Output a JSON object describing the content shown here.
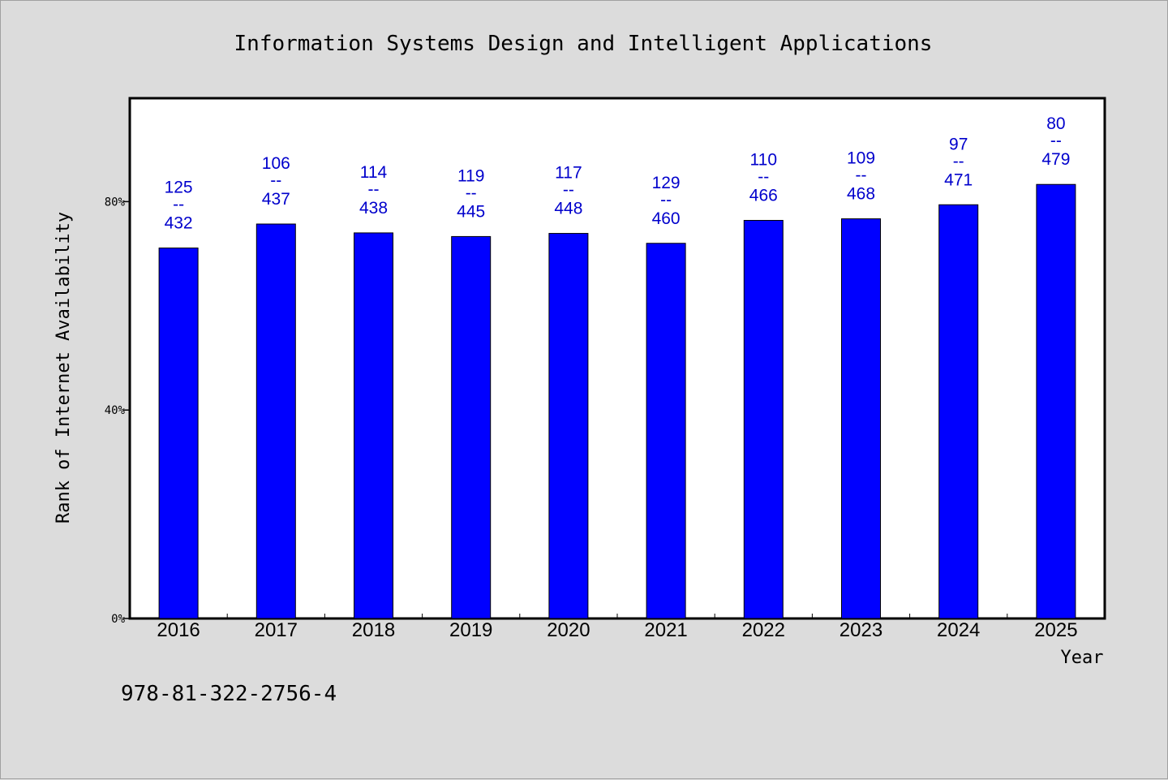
{
  "chart_data": {
    "type": "bar",
    "title": "Information Systems Design and Intelligent Applications",
    "xlabel": "Year",
    "ylabel": "Rank of Internet Availability",
    "ylim": [
      0,
      100
    ],
    "yticks": [
      0,
      40,
      80
    ],
    "ytick_labels": [
      "0%",
      "40%",
      "80%"
    ],
    "categories": [
      "2016",
      "2017",
      "2018",
      "2019",
      "2020",
      "2021",
      "2022",
      "2023",
      "2024",
      "2025"
    ],
    "values": [
      71.1,
      75.7,
      74.0,
      73.3,
      73.9,
      72.0,
      76.4,
      76.7,
      79.4,
      83.3
    ],
    "label_numerators": [
      "125",
      "106",
      "114",
      "119",
      "117",
      "129",
      "110",
      "109",
      "97",
      "80"
    ],
    "label_separator": "--",
    "label_denominators": [
      "432",
      "437",
      "438",
      "445",
      "448",
      "460",
      "466",
      "468",
      "471",
      "479"
    ],
    "bar_color": "#0000ff",
    "label_color": "#0000cc",
    "plot_background": "#ffffff",
    "page_background": "#dcdcdc",
    "grid": false,
    "legend": "none"
  },
  "footer": {
    "isbn": "978-81-322-2756-4"
  }
}
